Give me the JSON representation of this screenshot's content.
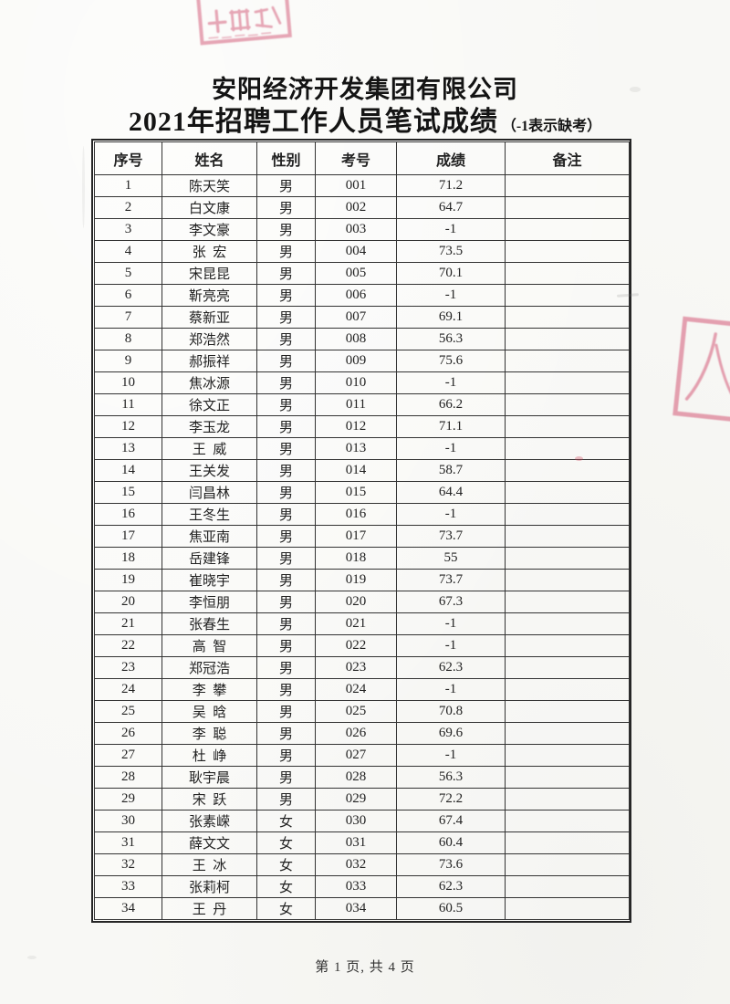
{
  "doc": {
    "title": "安阳经济开发集团有限公司",
    "subtitle": "2021年招聘工作人员笔试成绩",
    "subtitle_note": "（-1表示缺考）",
    "footer": "第 1 页, 共 4 页"
  },
  "table": {
    "headers": [
      "序号",
      "姓名",
      "性别",
      "考号",
      "成绩",
      "备注"
    ],
    "rows": [
      [
        "1",
        "陈天笑",
        "男",
        "001",
        "71.2",
        ""
      ],
      [
        "2",
        "白文康",
        "男",
        "002",
        "64.7",
        ""
      ],
      [
        "3",
        "李文豪",
        "男",
        "003",
        "-1",
        ""
      ],
      [
        "4",
        "张  宏",
        "男",
        "004",
        "73.5",
        ""
      ],
      [
        "5",
        "宋昆昆",
        "男",
        "005",
        "70.1",
        ""
      ],
      [
        "6",
        "靳亮亮",
        "男",
        "006",
        "-1",
        ""
      ],
      [
        "7",
        "蔡新亚",
        "男",
        "007",
        "69.1",
        ""
      ],
      [
        "8",
        "郑浩然",
        "男",
        "008",
        "56.3",
        ""
      ],
      [
        "9",
        "郝振祥",
        "男",
        "009",
        "75.6",
        ""
      ],
      [
        "10",
        "焦冰源",
        "男",
        "010",
        "-1",
        ""
      ],
      [
        "11",
        "徐文正",
        "男",
        "011",
        "66.2",
        ""
      ],
      [
        "12",
        "李玉龙",
        "男",
        "012",
        "71.1",
        ""
      ],
      [
        "13",
        "王  威",
        "男",
        "013",
        "-1",
        ""
      ],
      [
        "14",
        "王关发",
        "男",
        "014",
        "58.7",
        ""
      ],
      [
        "15",
        "闫昌林",
        "男",
        "015",
        "64.4",
        ""
      ],
      [
        "16",
        "王冬生",
        "男",
        "016",
        "-1",
        ""
      ],
      [
        "17",
        "焦亚南",
        "男",
        "017",
        "73.7",
        ""
      ],
      [
        "18",
        "岳建锋",
        "男",
        "018",
        "55",
        ""
      ],
      [
        "19",
        "崔晓宇",
        "男",
        "019",
        "73.7",
        ""
      ],
      [
        "20",
        "李恒朋",
        "男",
        "020",
        "67.3",
        ""
      ],
      [
        "21",
        "张春生",
        "男",
        "021",
        "-1",
        ""
      ],
      [
        "22",
        "高  智",
        "男",
        "022",
        "-1",
        ""
      ],
      [
        "23",
        "郑冠浩",
        "男",
        "023",
        "62.3",
        ""
      ],
      [
        "24",
        "李  攀",
        "男",
        "024",
        "-1",
        ""
      ],
      [
        "25",
        "吴  晗",
        "男",
        "025",
        "70.8",
        ""
      ],
      [
        "26",
        "李  聪",
        "男",
        "026",
        "69.6",
        ""
      ],
      [
        "27",
        "杜  峥",
        "男",
        "027",
        "-1",
        ""
      ],
      [
        "28",
        "耿宇晨",
        "男",
        "028",
        "56.3",
        ""
      ],
      [
        "29",
        "宋  跃",
        "男",
        "029",
        "72.2",
        ""
      ],
      [
        "30",
        "张素嵘",
        "女",
        "030",
        "67.4",
        ""
      ],
      [
        "31",
        "薛文文",
        "女",
        "031",
        "60.4",
        ""
      ],
      [
        "32",
        "王  冰",
        "女",
        "032",
        "73.6",
        ""
      ],
      [
        "33",
        "张莉柯",
        "女",
        "033",
        "62.3",
        ""
      ],
      [
        "34",
        "王  丹",
        "女",
        "034",
        "60.5",
        ""
      ]
    ]
  },
  "stamps": {
    "top": "partial-red-stamp",
    "right": "partial-red-stamp"
  },
  "colors": {
    "stamp_pink": "#dd8298",
    "table_border": "#333333",
    "text": "#1f1f1f",
    "page_bg": "#f8f8f5"
  }
}
